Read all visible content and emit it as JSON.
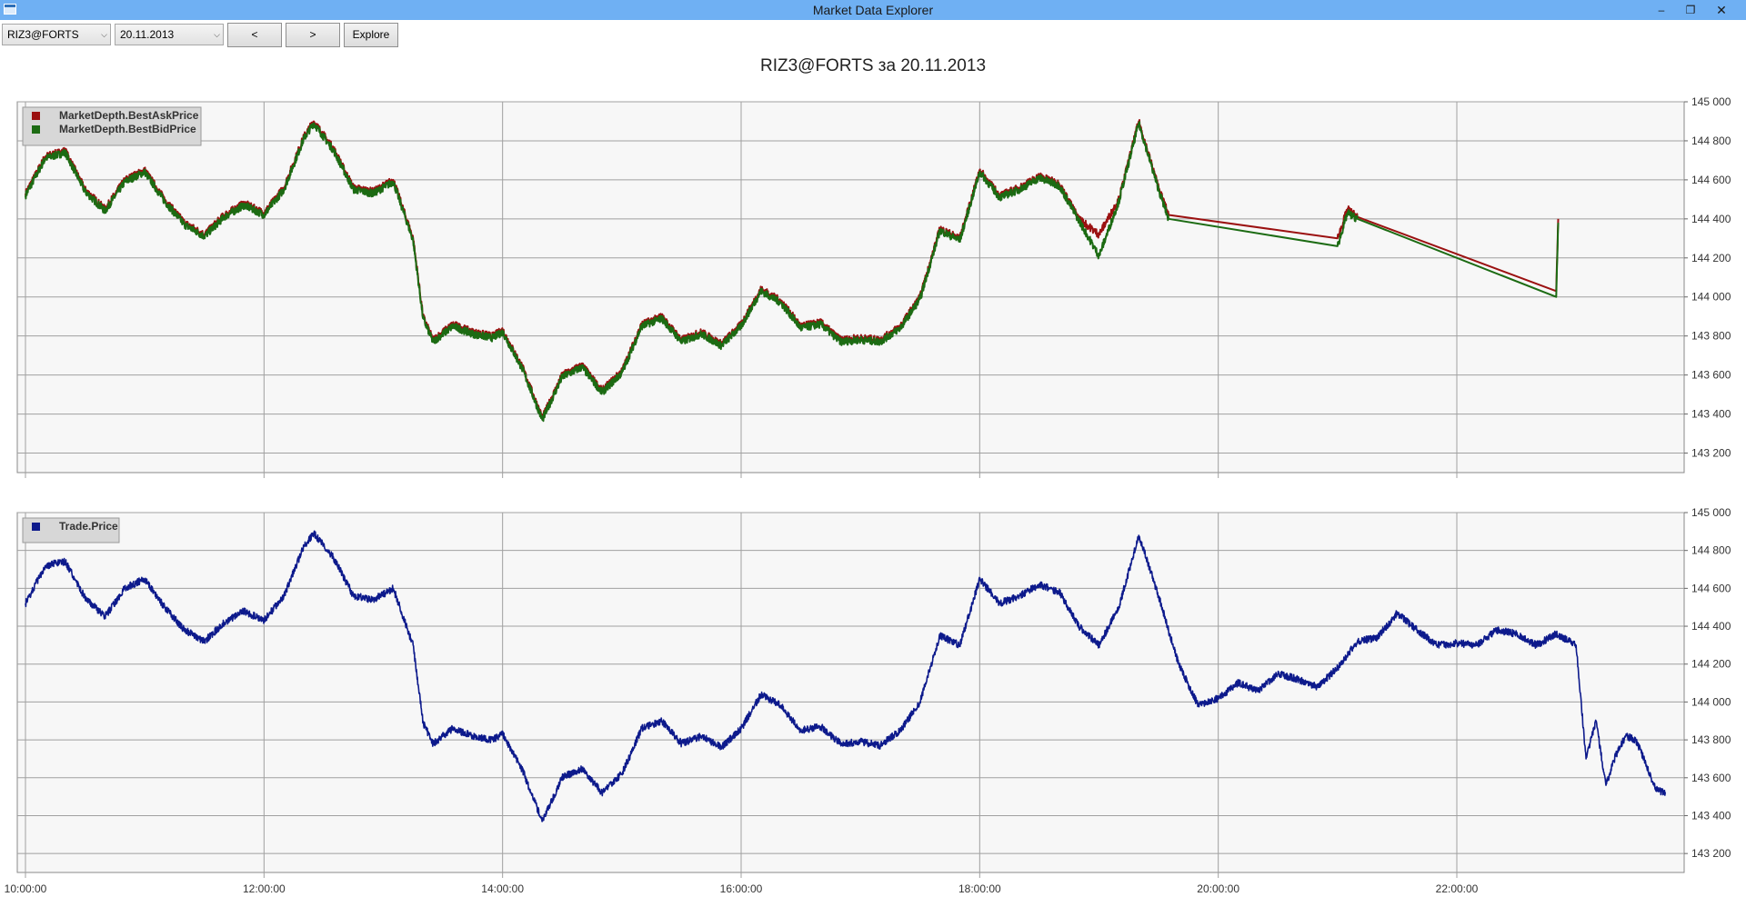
{
  "window": {
    "title": "Market Data Explorer"
  },
  "toolbar": {
    "security": "RIZ3@FORTS",
    "date": "20.11.2013",
    "prev_label": "<",
    "next_label": ">",
    "explore_label": "Explore"
  },
  "title": "RIZ3@FORTS за 20.11.2013",
  "colors": {
    "ask": "#9b1111",
    "bid": "#1c6b13",
    "trade": "#0d1a8c",
    "grid": "#a0a0a0"
  },
  "chart_data": [
    {
      "type": "line",
      "legend_position": "top-left",
      "grid": true,
      "x_range": [
        "10:00:00",
        "23:50:00"
      ],
      "ylim": [
        143100,
        145000
      ],
      "y_ticks": [
        "145 000",
        "144 800",
        "144 600",
        "144 400",
        "144 200",
        "144 000",
        "143 800",
        "143 600",
        "143 400",
        "143 200"
      ],
      "series": [
        {
          "name": "MarketDepth.BestAskPrice",
          "color": "#9b1111",
          "points": [
            [
              "10:00",
              144530
            ],
            [
              "10:10",
              144720
            ],
            [
              "10:20",
              144750
            ],
            [
              "10:30",
              144550
            ],
            [
              "10:40",
              144450
            ],
            [
              "10:50",
              144600
            ],
            [
              "11:00",
              144650
            ],
            [
              "11:10",
              144500
            ],
            [
              "11:20",
              144380
            ],
            [
              "11:30",
              144320
            ],
            [
              "11:40",
              144420
            ],
            [
              "11:50",
              144480
            ],
            [
              "12:00",
              144430
            ],
            [
              "12:10",
              144560
            ],
            [
              "12:20",
              144820
            ],
            [
              "12:25",
              144900
            ],
            [
              "12:35",
              144760
            ],
            [
              "12:45",
              144560
            ],
            [
              "12:55",
              144540
            ],
            [
              "13:05",
              144600
            ],
            [
              "13:15",
              144300
            ],
            [
              "13:20",
              143900
            ],
            [
              "13:25",
              143780
            ],
            [
              "13:35",
              143860
            ],
            [
              "13:45",
              143820
            ],
            [
              "13:55",
              143800
            ],
            [
              "14:00",
              143830
            ],
            [
              "14:10",
              143640
            ],
            [
              "14:20",
              143380
            ],
            [
              "14:30",
              143600
            ],
            [
              "14:40",
              143650
            ],
            [
              "14:50",
              143520
            ],
            [
              "15:00",
              143620
            ],
            [
              "15:10",
              143860
            ],
            [
              "15:20",
              143900
            ],
            [
              "15:30",
              143780
            ],
            [
              "15:40",
              143820
            ],
            [
              "15:50",
              143760
            ],
            [
              "16:00",
              143860
            ],
            [
              "16:10",
              144040
            ],
            [
              "16:20",
              143980
            ],
            [
              "16:30",
              143850
            ],
            [
              "16:40",
              143870
            ],
            [
              "16:50",
              143780
            ],
            [
              "17:00",
              143790
            ],
            [
              "17:10",
              143780
            ],
            [
              "17:20",
              143850
            ],
            [
              "17:30",
              144000
            ],
            [
              "17:40",
              144350
            ],
            [
              "17:50",
              144300
            ],
            [
              "18:00",
              144650
            ],
            [
              "18:10",
              144520
            ],
            [
              "18:20",
              144560
            ],
            [
              "18:30",
              144620
            ],
            [
              "18:40",
              144580
            ],
            [
              "18:50",
              144400
            ],
            [
              "19:00",
              144320
            ],
            [
              "19:10",
              144500
            ],
            [
              "19:20",
              144900
            ],
            [
              "19:30",
              144560
            ],
            [
              "19:35",
              144420
            ],
            [
              "21:00",
              144300
            ],
            [
              "21:05",
              144450
            ],
            [
              "21:10",
              144410
            ],
            [
              "22:50",
              144030
            ],
            [
              "22:51",
              144400
            ]
          ]
        },
        {
          "name": "MarketDepth.BestBidPrice",
          "color": "#1c6b13",
          "points": [
            [
              "10:00",
              144520
            ],
            [
              "10:10",
              144710
            ],
            [
              "10:20",
              144740
            ],
            [
              "10:30",
              144540
            ],
            [
              "10:40",
              144440
            ],
            [
              "10:50",
              144590
            ],
            [
              "11:00",
              144640
            ],
            [
              "11:10",
              144490
            ],
            [
              "11:20",
              144370
            ],
            [
              "11:30",
              144310
            ],
            [
              "11:40",
              144410
            ],
            [
              "11:50",
              144470
            ],
            [
              "12:00",
              144420
            ],
            [
              "12:10",
              144550
            ],
            [
              "12:20",
              144810
            ],
            [
              "12:25",
              144890
            ],
            [
              "12:35",
              144750
            ],
            [
              "12:45",
              144550
            ],
            [
              "12:55",
              144530
            ],
            [
              "13:05",
              144590
            ],
            [
              "13:15",
              144290
            ],
            [
              "13:20",
              143890
            ],
            [
              "13:25",
              143770
            ],
            [
              "13:35",
              143850
            ],
            [
              "13:45",
              143810
            ],
            [
              "13:55",
              143790
            ],
            [
              "14:00",
              143820
            ],
            [
              "14:10",
              143630
            ],
            [
              "14:20",
              143370
            ],
            [
              "14:30",
              143590
            ],
            [
              "14:40",
              143640
            ],
            [
              "14:50",
              143510
            ],
            [
              "15:00",
              143610
            ],
            [
              "15:10",
              143850
            ],
            [
              "15:20",
              143890
            ],
            [
              "15:30",
              143770
            ],
            [
              "15:40",
              143810
            ],
            [
              "15:50",
              143750
            ],
            [
              "16:00",
              143850
            ],
            [
              "16:10",
              144030
            ],
            [
              "16:20",
              143970
            ],
            [
              "16:30",
              143840
            ],
            [
              "16:40",
              143860
            ],
            [
              "16:50",
              143770
            ],
            [
              "17:00",
              143780
            ],
            [
              "17:10",
              143770
            ],
            [
              "17:20",
              143840
            ],
            [
              "17:30",
              143990
            ],
            [
              "17:40",
              144340
            ],
            [
              "17:50",
              144290
            ],
            [
              "18:00",
              144640
            ],
            [
              "18:10",
              144510
            ],
            [
              "18:20",
              144550
            ],
            [
              "18:30",
              144610
            ],
            [
              "18:40",
              144570
            ],
            [
              "18:50",
              144390
            ],
            [
              "19:00",
              144210
            ],
            [
              "19:10",
              144490
            ],
            [
              "19:20",
              144890
            ],
            [
              "19:30",
              144550
            ],
            [
              "19:35",
              144400
            ],
            [
              "21:00",
              144260
            ],
            [
              "21:05",
              144430
            ],
            [
              "21:10",
              144400
            ],
            [
              "22:50",
              144000
            ],
            [
              "22:51",
              144380
            ]
          ]
        }
      ]
    },
    {
      "type": "line",
      "legend_position": "top-left",
      "grid": true,
      "x_range": [
        "10:00:00",
        "23:50:00"
      ],
      "ylim": [
        143100,
        145000
      ],
      "y_ticks": [
        "145 000",
        "144 800",
        "144 600",
        "144 400",
        "144 200",
        "144 000",
        "143 800",
        "143 600",
        "143 400",
        "143 200"
      ],
      "x_ticks": [
        "10:00:00",
        "12:00:00",
        "14:00:00",
        "16:00:00",
        "18:00:00",
        "20:00:00",
        "22:00:00"
      ],
      "series": [
        {
          "name": "Trade.Price",
          "color": "#0d1a8c",
          "points": [
            [
              "10:00",
              144520
            ],
            [
              "10:10",
              144720
            ],
            [
              "10:20",
              144740
            ],
            [
              "10:30",
              144550
            ],
            [
              "10:40",
              144450
            ],
            [
              "10:50",
              144600
            ],
            [
              "11:00",
              144650
            ],
            [
              "11:10",
              144500
            ],
            [
              "11:20",
              144380
            ],
            [
              "11:30",
              144320
            ],
            [
              "11:40",
              144420
            ],
            [
              "11:50",
              144480
            ],
            [
              "12:00",
              144430
            ],
            [
              "12:10",
              144560
            ],
            [
              "12:20",
              144820
            ],
            [
              "12:25",
              144890
            ],
            [
              "12:35",
              144760
            ],
            [
              "12:45",
              144560
            ],
            [
              "12:55",
              144540
            ],
            [
              "13:05",
              144600
            ],
            [
              "13:15",
              144300
            ],
            [
              "13:20",
              143890
            ],
            [
              "13:25",
              143780
            ],
            [
              "13:35",
              143860
            ],
            [
              "13:45",
              143820
            ],
            [
              "13:55",
              143800
            ],
            [
              "14:00",
              143830
            ],
            [
              "14:10",
              143640
            ],
            [
              "14:20",
              143370
            ],
            [
              "14:30",
              143600
            ],
            [
              "14:40",
              143650
            ],
            [
              "14:50",
              143520
            ],
            [
              "15:00",
              143620
            ],
            [
              "15:10",
              143860
            ],
            [
              "15:20",
              143900
            ],
            [
              "15:30",
              143780
            ],
            [
              "15:40",
              143820
            ],
            [
              "15:50",
              143760
            ],
            [
              "16:00",
              143860
            ],
            [
              "16:10",
              144040
            ],
            [
              "16:20",
              143980
            ],
            [
              "16:30",
              143850
            ],
            [
              "16:40",
              143870
            ],
            [
              "16:50",
              143780
            ],
            [
              "17:00",
              143790
            ],
            [
              "17:10",
              143770
            ],
            [
              "17:20",
              143850
            ],
            [
              "17:30",
              144000
            ],
            [
              "17:40",
              144350
            ],
            [
              "17:50",
              144300
            ],
            [
              "18:00",
              144650
            ],
            [
              "18:10",
              144520
            ],
            [
              "18:20",
              144560
            ],
            [
              "18:30",
              144620
            ],
            [
              "18:40",
              144580
            ],
            [
              "18:50",
              144400
            ],
            [
              "19:00",
              144300
            ],
            [
              "19:10",
              144500
            ],
            [
              "19:20",
              144880
            ],
            [
              "19:30",
              144560
            ],
            [
              "19:40",
              144200
            ],
            [
              "19:50",
              143980
            ],
            [
              "20:00",
              144020
            ],
            [
              "20:10",
              144100
            ],
            [
              "20:20",
              144060
            ],
            [
              "20:30",
              144150
            ],
            [
              "20:40",
              144120
            ],
            [
              "20:50",
              144080
            ],
            [
              "21:00",
              144180
            ],
            [
              "21:10",
              144320
            ],
            [
              "21:20",
              144340
            ],
            [
              "21:30",
              144470
            ],
            [
              "21:40",
              144380
            ],
            [
              "21:50",
              144300
            ],
            [
              "22:00",
              144310
            ],
            [
              "22:10",
              144300
            ],
            [
              "22:20",
              144380
            ],
            [
              "22:30",
              144360
            ],
            [
              "22:40",
              144300
            ],
            [
              "22:50",
              144360
            ],
            [
              "23:00",
              144300
            ],
            [
              "23:05",
              143700
            ],
            [
              "23:10",
              143900
            ],
            [
              "23:15",
              143560
            ],
            [
              "23:20",
              143720
            ],
            [
              "23:25",
              143820
            ],
            [
              "23:30",
              143800
            ],
            [
              "23:35",
              143680
            ],
            [
              "23:40",
              143540
            ],
            [
              "23:45",
              143520
            ]
          ]
        }
      ]
    }
  ]
}
